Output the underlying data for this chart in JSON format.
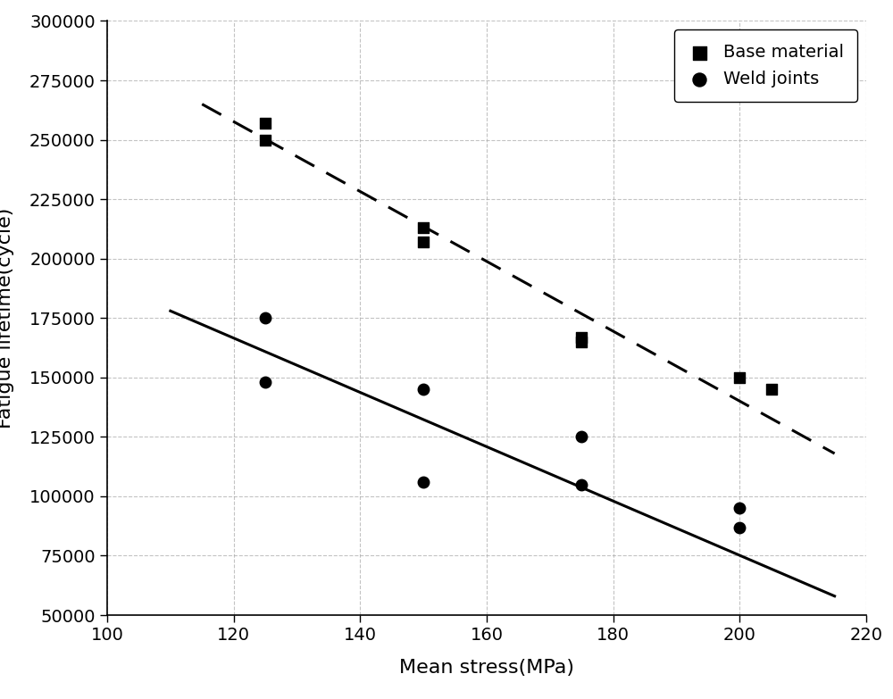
{
  "base_material_x": [
    125,
    125,
    150,
    150,
    175,
    175,
    200,
    205
  ],
  "base_material_y": [
    257000,
    250000,
    213000,
    207000,
    167000,
    165000,
    150000,
    145000
  ],
  "weld_joints_x": [
    125,
    125,
    150,
    150,
    175,
    175,
    200,
    200
  ],
  "weld_joints_y": [
    175000,
    148000,
    145000,
    106000,
    125000,
    105000,
    95000,
    87000
  ],
  "solid_line_x": [
    110,
    215
  ],
  "solid_line_y": [
    178000,
    58000
  ],
  "dashed_line_x": [
    115,
    215
  ],
  "dashed_line_y": [
    265000,
    118000
  ],
  "xlabel": "Mean stress(MPa)",
  "ylabel": "Fatigue lifetime(cycle)",
  "xlim": [
    100,
    220
  ],
  "ylim": [
    50000,
    300000
  ],
  "xticks": [
    100,
    120,
    140,
    160,
    180,
    200,
    220
  ],
  "yticks": [
    50000,
    75000,
    100000,
    125000,
    150000,
    175000,
    200000,
    225000,
    250000,
    275000,
    300000
  ],
  "legend_base": "Base material",
  "legend_weld": "Weld joints",
  "marker_color": "#000000",
  "line_color": "#000000",
  "background_color": "#ffffff",
  "grid_color": "#aaaaaa",
  "marker_size": 9,
  "line_width": 2.2
}
